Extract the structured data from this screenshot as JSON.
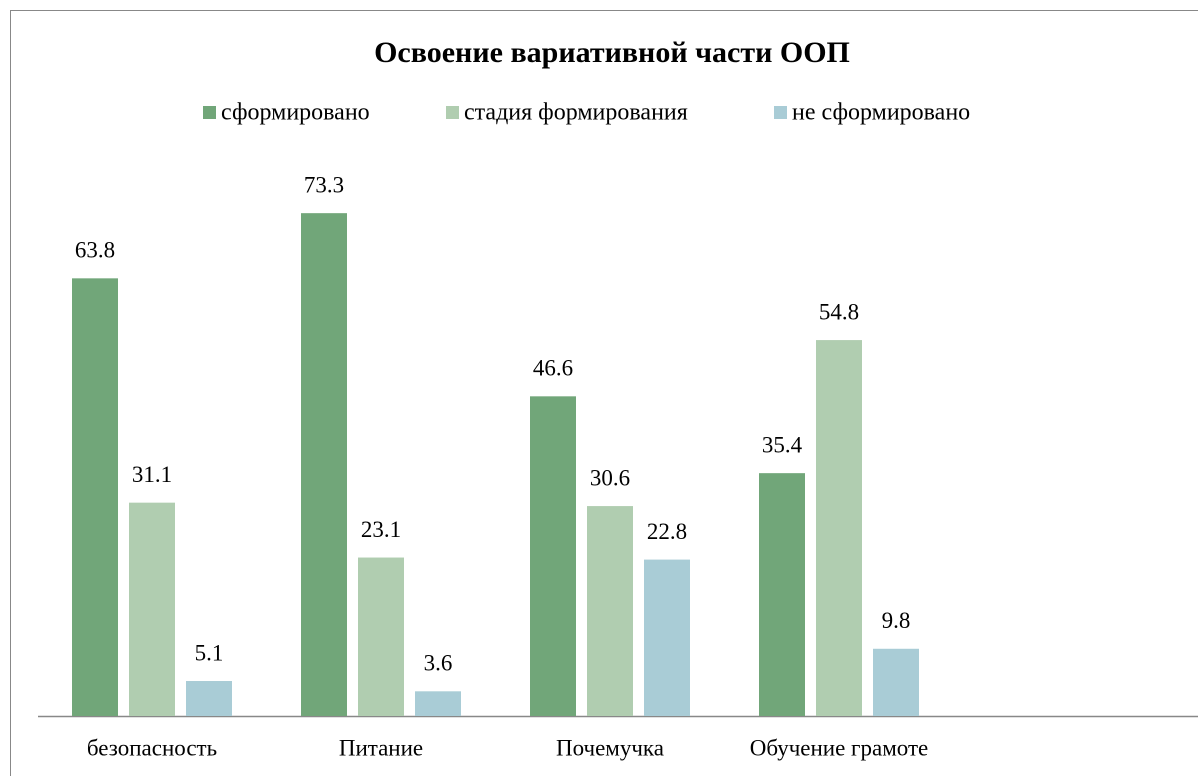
{
  "chart_data": {
    "type": "bar",
    "title": "Освоение вариативной части ООП",
    "categories": [
      "безопасность",
      "Питание",
      "Почемучка",
      "Обучение грамоте"
    ],
    "series": [
      {
        "name": "сформировано",
        "color": "#71a679",
        "values": [
          63.8,
          73.3,
          46.6,
          35.4
        ]
      },
      {
        "name": "стадия формирования",
        "color": "#b0cdb0",
        "values": [
          31.1,
          23.1,
          30.6,
          54.8
        ]
      },
      {
        "name": "не сформировано",
        "color": "#a9ccd6",
        "values": [
          5.1,
          3.6,
          22.8,
          9.8
        ]
      }
    ]
  }
}
